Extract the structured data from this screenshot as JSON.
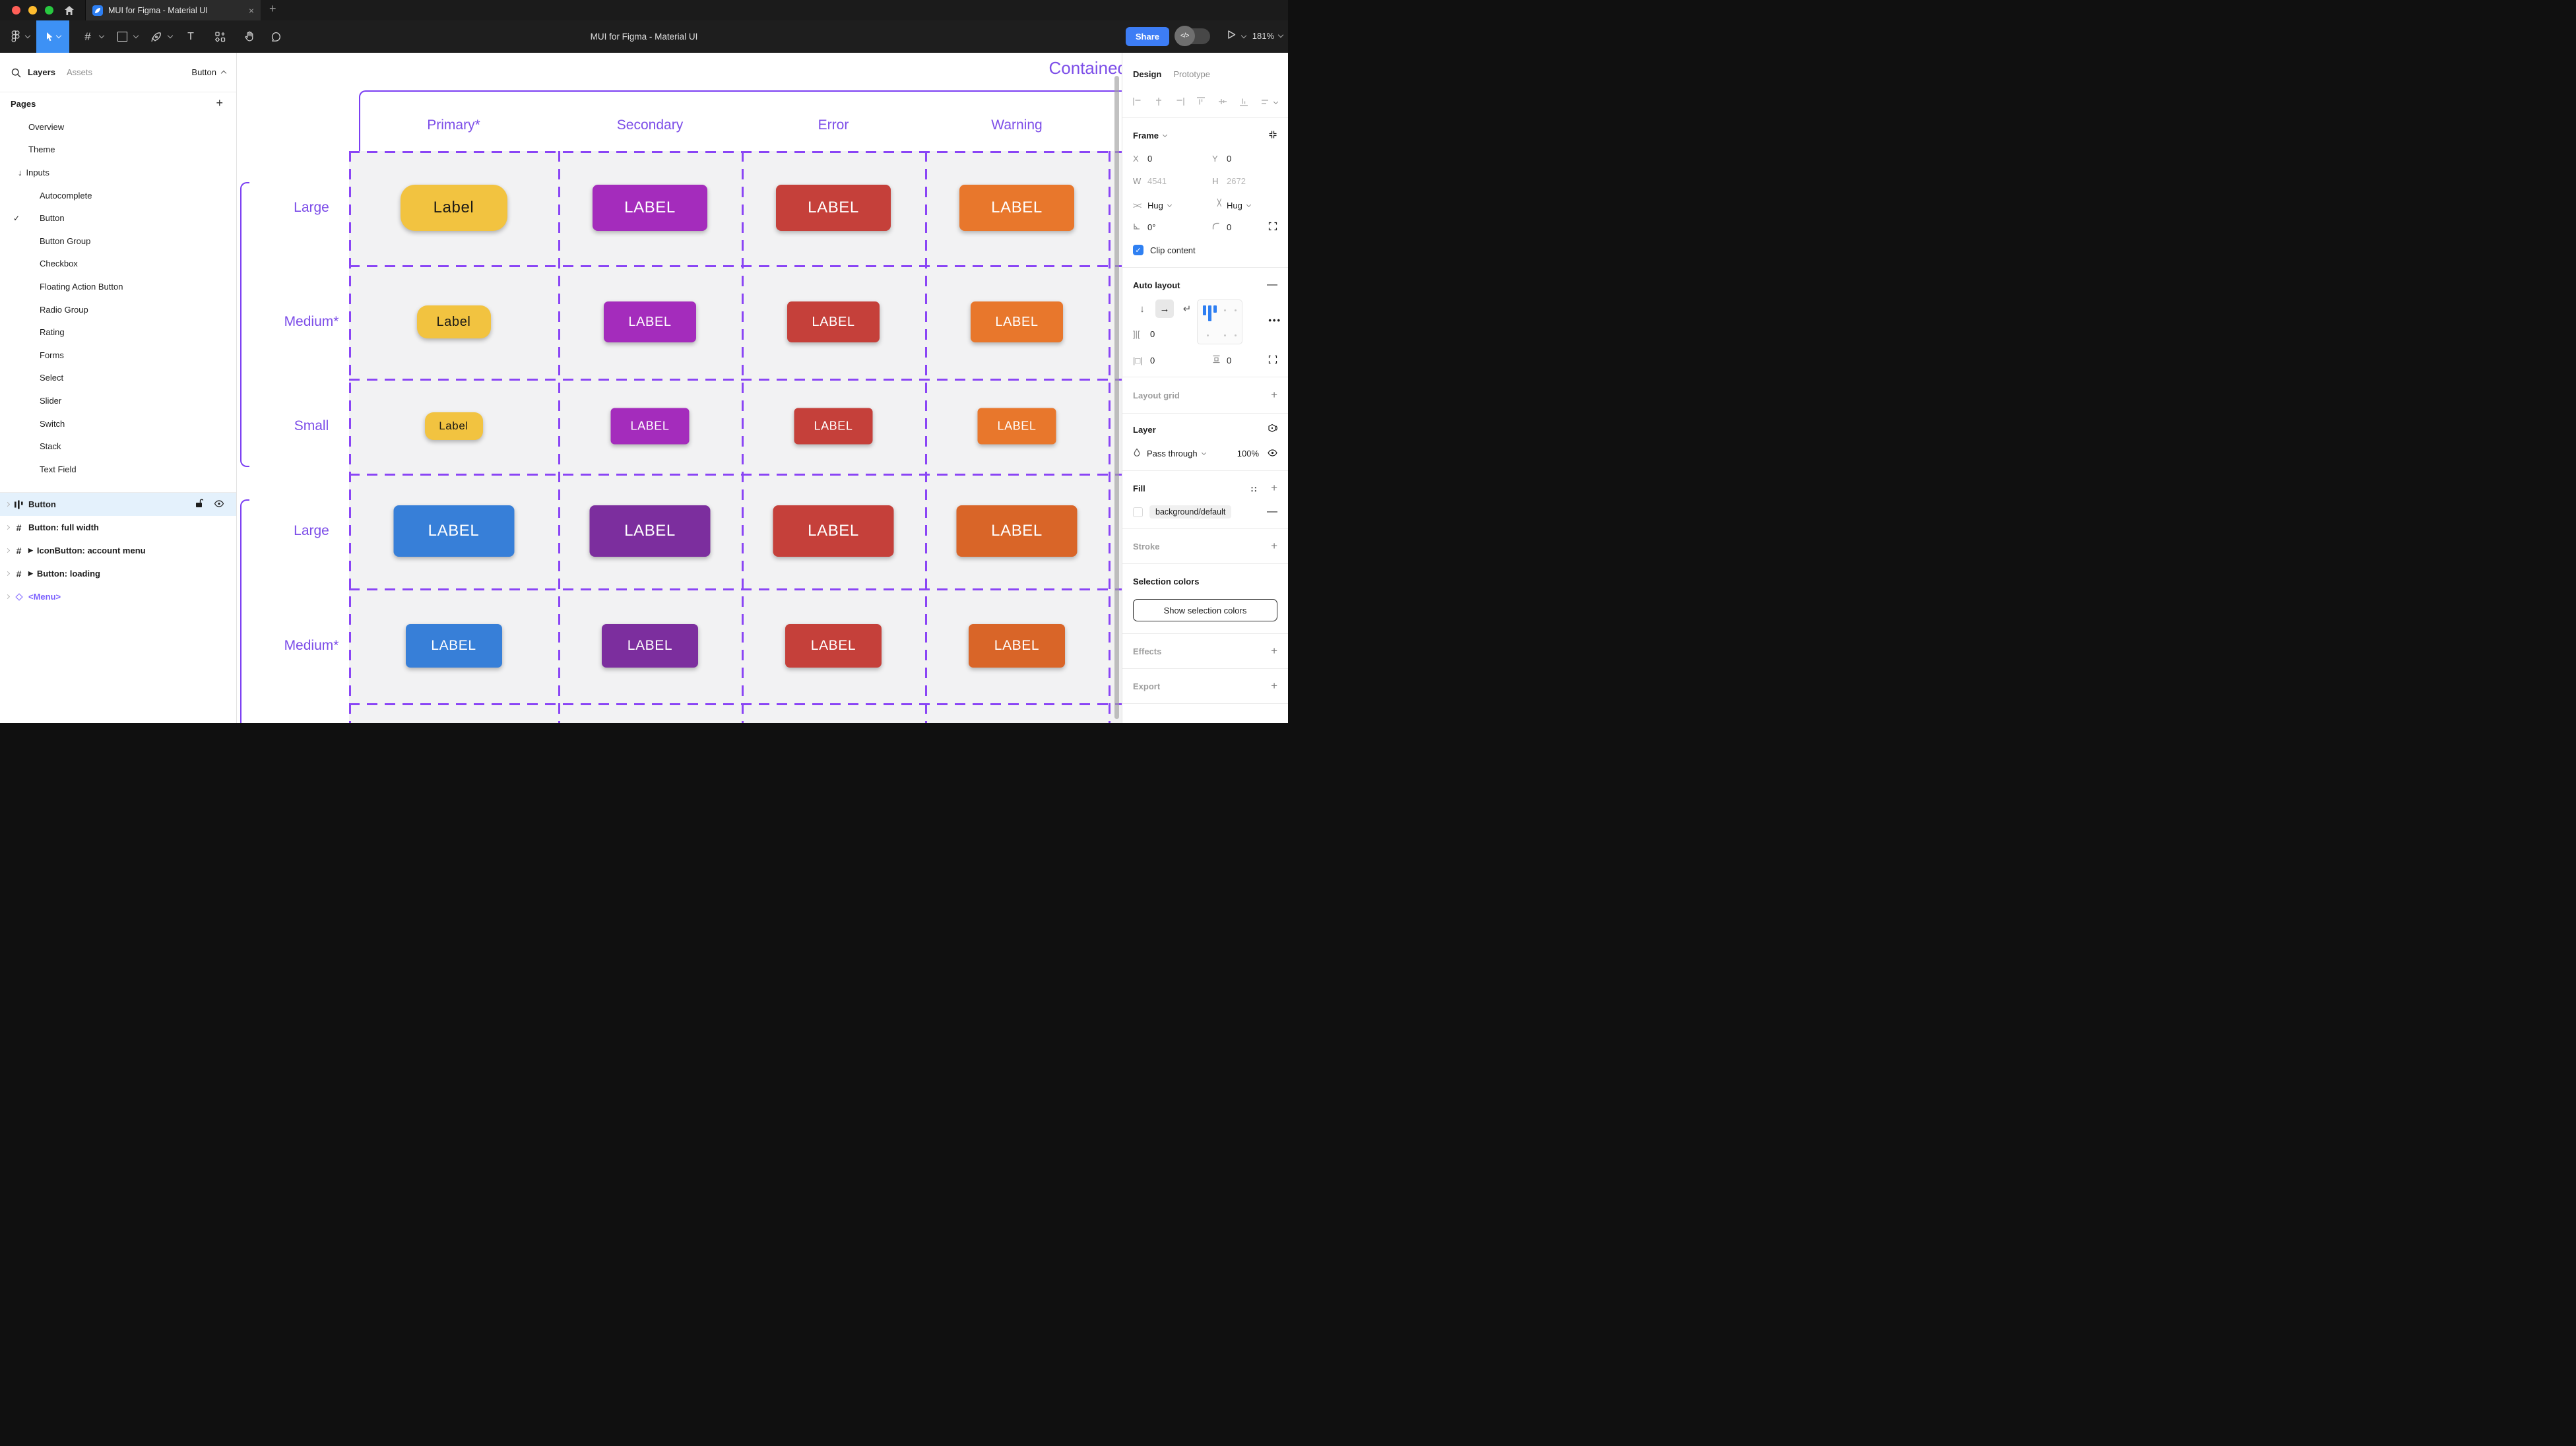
{
  "window": {
    "tab_title": "MUI for Figma - Material UI",
    "close_tab": "×",
    "new_tab": "+",
    "toolbar_title": "MUI for Figma - Material UI",
    "share_label": "Share",
    "zoom_level": "181%"
  },
  "left_sidebar": {
    "tab_layers": "Layers",
    "tab_assets": "Assets",
    "component_selector": "Button",
    "pages_header": "Pages",
    "pages_add": "+",
    "pages": [
      {
        "label": "Overview"
      },
      {
        "label": "Theme"
      },
      {
        "label": "Inputs",
        "arrow": "↓"
      },
      {
        "label": "Autocomplete",
        "sub": true
      },
      {
        "label": "Button",
        "sub": true,
        "checked": true
      },
      {
        "label": "Button Group",
        "sub": true
      },
      {
        "label": "Checkbox",
        "sub": true
      },
      {
        "label": "Floating Action Button",
        "sub": true
      },
      {
        "label": "Radio Group",
        "sub": true
      },
      {
        "label": "Rating",
        "sub": true
      },
      {
        "label": "Forms",
        "sub": true
      },
      {
        "label": "Select",
        "sub": true
      },
      {
        "label": "Slider",
        "sub": true
      },
      {
        "label": "Switch",
        "sub": true
      },
      {
        "label": "Stack",
        "sub": true
      },
      {
        "label": "Text Field",
        "sub": true
      }
    ],
    "layers": [
      {
        "label": "Button",
        "icon": "auto-layout",
        "selected": true
      },
      {
        "label": "Button: full width",
        "icon": "frame"
      },
      {
        "label": "IconButton: account menu",
        "icon": "frame",
        "play": true
      },
      {
        "label": "Button: loading",
        "icon": "frame",
        "play": true
      },
      {
        "label": "<Menu>",
        "icon": "component"
      }
    ]
  },
  "canvas": {
    "frame_title": "Contained",
    "columns": [
      "Primary*",
      "Secondary",
      "Error",
      "Warning"
    ],
    "rows": [
      {
        "label": "Large",
        "group": 1,
        "size": "large",
        "buttons": [
          {
            "text": "Label",
            "bg": "#F2C340",
            "fg": "#1D1B16",
            "variant": "text"
          },
          {
            "text": "LABEL",
            "bg": "#A42CBC"
          },
          {
            "text": "LABEL",
            "bg": "#C5403A"
          },
          {
            "text": "LABEL",
            "bg": "#E8772C"
          }
        ]
      },
      {
        "label": "Medium*",
        "group": 1,
        "size": "medium",
        "buttons": [
          {
            "text": "Label",
            "bg": "#F2C340",
            "fg": "#1D1B16",
            "variant": "text"
          },
          {
            "text": "LABEL",
            "bg": "#A42CBC"
          },
          {
            "text": "LABEL",
            "bg": "#C5403A"
          },
          {
            "text": "LABEL",
            "bg": "#E8772C"
          }
        ]
      },
      {
        "label": "Small",
        "group": 1,
        "size": "small",
        "buttons": [
          {
            "text": "Label",
            "bg": "#F2C340",
            "fg": "#1D1B16",
            "variant": "text"
          },
          {
            "text": "LABEL",
            "bg": "#A42CBC"
          },
          {
            "text": "LABEL",
            "bg": "#C5403A"
          },
          {
            "text": "LABEL",
            "bg": "#E8772C"
          }
        ]
      },
      {
        "label": "Large",
        "group": 2,
        "size": "large",
        "buttons": [
          {
            "text": "LABEL",
            "bg": "#377FD8"
          },
          {
            "text": "LABEL",
            "bg": "#7C2E9E"
          },
          {
            "text": "LABEL",
            "bg": "#C5403A"
          },
          {
            "text": "LABEL",
            "bg": "#D96528"
          }
        ]
      },
      {
        "label": "Medium*",
        "group": 2,
        "size": "medium",
        "buttons": [
          {
            "text": "LABEL",
            "bg": "#377FD8"
          },
          {
            "text": "LABEL",
            "bg": "#7C2E9E"
          },
          {
            "text": "LABEL",
            "bg": "#C5403A"
          },
          {
            "text": "LABEL",
            "bg": "#D96528"
          }
        ]
      }
    ],
    "colors": {
      "accent_text": "#7C4DE8",
      "dashed_line": "#8A45F5",
      "solid_line": "#7B3FF2",
      "cell_background": "#F2F2F3"
    }
  },
  "right_panel": {
    "tab_design": "Design",
    "tab_prototype": "Prototype",
    "frame": {
      "title": "Frame",
      "x_label": "X",
      "x": "0",
      "y_label": "Y",
      "y": "0",
      "w_label": "W",
      "w": "4541",
      "h_label": "H",
      "h": "2672",
      "hug_h": "Hug",
      "hug_v": "Hug",
      "rotation": "0°",
      "radius": "0",
      "clip": "Clip content"
    },
    "auto_layout": {
      "title": "Auto layout",
      "gap": "0",
      "padding_h": "0",
      "padding_v": "0"
    },
    "layout_grid": {
      "title": "Layout grid",
      "add": "+"
    },
    "layer": {
      "title": "Layer",
      "blend_mode": "Pass through",
      "opacity": "100%"
    },
    "fill": {
      "title": "Fill",
      "token": "background/default",
      "remove": "—",
      "add": "+",
      "swatch": "#FFFFFF"
    },
    "stroke": {
      "title": "Stroke",
      "add": "+"
    },
    "selection_colors": {
      "title": "Selection colors",
      "button": "Show selection colors"
    },
    "effects": {
      "title": "Effects",
      "add": "+"
    },
    "export": {
      "title": "Export",
      "add": "+"
    },
    "colors": {
      "figma_blue": "#3D91F5",
      "share_blue": "#3D7DF5",
      "checkbox_blue": "#2F80F2"
    }
  }
}
